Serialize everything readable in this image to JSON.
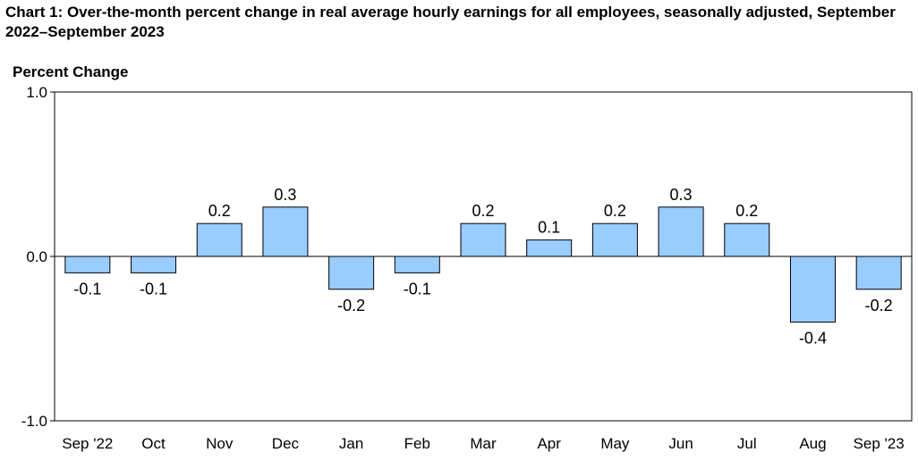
{
  "chart_data": {
    "type": "bar",
    "title": "Chart 1: Over-the-month percent change in real average hourly earnings for all employees, seasonally adjusted, September 2022–September 2023",
    "ylabel": "Percent Change",
    "xlabel": "",
    "ylim": [
      -1.0,
      1.0
    ],
    "y_ticks": [
      "1.0",
      "0.0",
      "-1.0"
    ],
    "y_tick_values": [
      1.0,
      0.0,
      -1.0
    ],
    "grid": false,
    "bar_color": "#99ccff",
    "bar_edge_color": "#000000",
    "categories": [
      "Sep '22",
      "Oct",
      "Nov",
      "Dec",
      "Jan",
      "Feb",
      "Mar",
      "Apr",
      "May",
      "Jun",
      "Jul",
      "Aug",
      "Sep '23"
    ],
    "values": [
      -0.1,
      -0.1,
      0.2,
      0.3,
      -0.2,
      -0.1,
      0.2,
      0.1,
      0.2,
      0.3,
      0.2,
      -0.4,
      -0.2
    ],
    "data_labels": [
      "-0.1",
      "-0.1",
      "0.2",
      "0.3",
      "-0.2",
      "-0.1",
      "0.2",
      "0.1",
      "0.2",
      "0.3",
      "0.2",
      "-0.4",
      "-0.2"
    ]
  }
}
